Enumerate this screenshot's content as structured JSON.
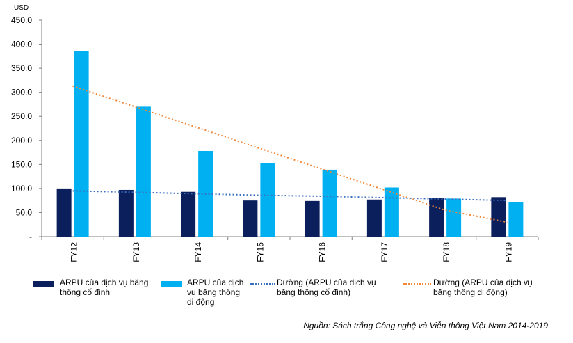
{
  "chart_data": {
    "type": "bar",
    "unit_label": "USD",
    "categories": [
      "FY12",
      "FY13",
      "FY14",
      "FY15",
      "FY16",
      "FY17",
      "FY18",
      "FY19"
    ],
    "ylim": [
      0,
      450
    ],
    "yticks": [
      "-",
      "50.0",
      "100.0",
      "150.0",
      "200.0",
      "250.0",
      "300.0",
      "350.0",
      "400.0",
      "450.0"
    ],
    "series": [
      {
        "name": "ARPU của dịch vụ băng thông cố định",
        "kind": "bar",
        "color": "#0a1f5c",
        "values": [
          100,
          97,
          93,
          75,
          74,
          77,
          81,
          82
        ]
      },
      {
        "name": "ARPU của dịch vụ băng thông di động",
        "kind": "bar",
        "color": "#00b0f0",
        "values": [
          385,
          270,
          178,
          153,
          139,
          102,
          79,
          71
        ]
      },
      {
        "name": "Đường (ARPU của dịch vụ băng thông cố định)",
        "kind": "trend",
        "color": "#3a6fbf",
        "values": [
          95,
          92,
          89,
          86,
          84,
          81,
          78,
          75
        ]
      },
      {
        "name": "Đường (ARPU của dịch vụ băng thông di động)",
        "kind": "trend",
        "color": "#f0883a",
        "values": [
          313,
          270,
          227,
          184,
          141,
          98,
          55,
          30
        ]
      }
    ],
    "grid": false,
    "legend_position": "bottom",
    "source": "Nguồn: Sách trắng Công nghệ và Viễn thông Việt Nam 2014-2019"
  }
}
